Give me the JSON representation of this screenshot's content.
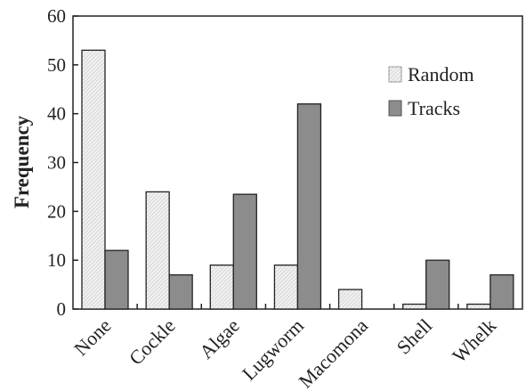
{
  "chart_data": {
    "type": "bar",
    "title": "",
    "xlabel": "",
    "ylabel": "Frequency",
    "ylim": [
      0,
      60
    ],
    "yticks": [
      0,
      10,
      20,
      30,
      40,
      50,
      60
    ],
    "grid": false,
    "legend_position": "top-right",
    "categories": [
      "None",
      "Cockle",
      "Algae",
      "Lugworm",
      "Macomona",
      "Shell",
      "Whelk"
    ],
    "series": [
      {
        "name": "Random",
        "values": [
          53,
          24,
          9,
          9,
          4,
          1,
          1
        ],
        "color": "#e6e6e6",
        "pattern": "hatched"
      },
      {
        "name": "Tracks",
        "values": [
          12,
          7,
          23.5,
          42,
          0,
          10,
          7
        ],
        "color": "#8c8c8c",
        "pattern": "solid"
      }
    ]
  }
}
